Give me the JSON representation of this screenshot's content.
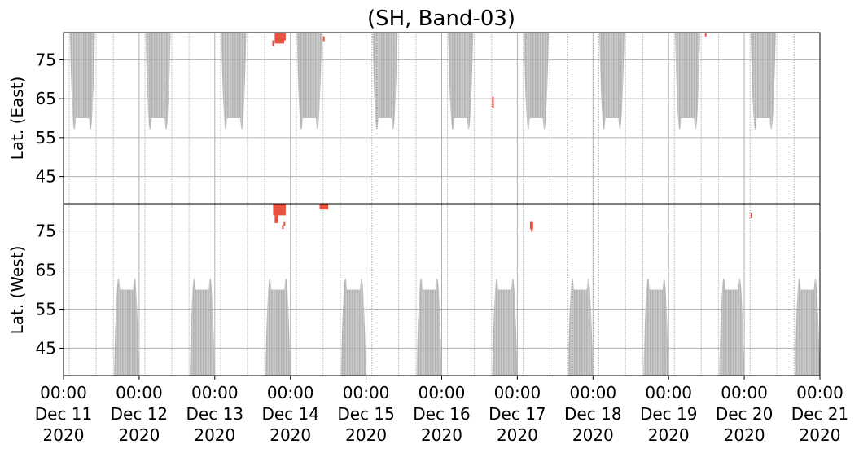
{
  "chart_data": {
    "type": "heatmap",
    "title": "(SH, Band-03)",
    "panels": [
      {
        "name": "east",
        "ylabel": "Lat. (East)",
        "ylim": [
          38,
          82
        ],
        "yticks": [
          45,
          55,
          65,
          75
        ],
        "ytick_labels": [
          "45",
          "55",
          "65",
          "75"
        ],
        "inverted": false
      },
      {
        "name": "west",
        "ylabel": "Lat. (West)",
        "ylim": [
          38,
          82
        ],
        "yticks": [
          75,
          65,
          55,
          45
        ],
        "ytick_labels": [
          "75",
          "65",
          "55",
          "45"
        ],
        "inverted": true
      }
    ],
    "xlim": [
      "2020-12-11 00:00",
      "2020-12-21 00:00"
    ],
    "xticks": [
      {
        "time": "00:00",
        "date": "Dec 11",
        "year": "2020"
      },
      {
        "time": "00:00",
        "date": "Dec 12",
        "year": "2020"
      },
      {
        "time": "00:00",
        "date": "Dec 13",
        "year": "2020"
      },
      {
        "time": "00:00",
        "date": "Dec 14",
        "year": "2020"
      },
      {
        "time": "00:00",
        "date": "Dec 15",
        "year": "2020"
      },
      {
        "time": "00:00",
        "date": "Dec 16",
        "year": "2020"
      },
      {
        "time": "00:00",
        "date": "Dec 17",
        "year": "2020"
      },
      {
        "time": "00:00",
        "date": "Dec 18",
        "year": "2020"
      },
      {
        "time": "00:00",
        "date": "Dec 19",
        "year": "2020"
      },
      {
        "time": "00:00",
        "date": "Dec 20",
        "year": "2020"
      },
      {
        "time": "00:00",
        "date": "Dec 21",
        "year": "2020"
      }
    ],
    "grid": true,
    "coverage_color": "#c4c4c4",
    "detection_color": "#e8503f",
    "coverage_east": [
      {
        "start": "2020-12-11 02:00",
        "end": "2020-12-11 10:00",
        "min_lat": 60
      },
      {
        "start": "2020-12-12 02:00",
        "end": "2020-12-12 10:00",
        "min_lat": 60
      },
      {
        "start": "2020-12-13 02:00",
        "end": "2020-12-13 10:00",
        "min_lat": 60
      },
      {
        "start": "2020-12-14 02:00",
        "end": "2020-12-14 10:00",
        "min_lat": 60
      },
      {
        "start": "2020-12-15 02:00",
        "end": "2020-12-15 10:00",
        "min_lat": 60
      },
      {
        "start": "2020-12-16 02:00",
        "end": "2020-12-16 10:00",
        "min_lat": 60
      },
      {
        "start": "2020-12-17 02:00",
        "end": "2020-12-17 10:00",
        "min_lat": 60
      },
      {
        "start": "2020-12-18 02:00",
        "end": "2020-12-18 10:00",
        "min_lat": 60
      },
      {
        "start": "2020-12-19 02:00",
        "end": "2020-12-19 10:00",
        "min_lat": 60
      },
      {
        "start": "2020-12-20 02:00",
        "end": "2020-12-20 10:00",
        "min_lat": 60
      }
    ],
    "coverage_west": [
      {
        "start": "2020-12-11 16:00",
        "end": "2020-12-12 00:00",
        "min_lat": 60
      },
      {
        "start": "2020-12-12 16:00",
        "end": "2020-12-13 00:00",
        "min_lat": 60
      },
      {
        "start": "2020-12-13 16:00",
        "end": "2020-12-14 00:00",
        "min_lat": 60
      },
      {
        "start": "2020-12-14 16:00",
        "end": "2020-12-15 00:00",
        "min_lat": 60
      },
      {
        "start": "2020-12-15 16:00",
        "end": "2020-12-16 00:00",
        "min_lat": 60
      },
      {
        "start": "2020-12-16 16:00",
        "end": "2020-12-17 00:00",
        "min_lat": 60
      },
      {
        "start": "2020-12-17 16:00",
        "end": "2020-12-18 00:00",
        "min_lat": 60
      },
      {
        "start": "2020-12-18 16:00",
        "end": "2020-12-19 00:00",
        "min_lat": 60
      },
      {
        "start": "2020-12-19 16:00",
        "end": "2020-12-20 00:00",
        "min_lat": 60
      },
      {
        "start": "2020-12-20 16:00",
        "end": "2020-12-21 00:00",
        "min_lat": 60
      }
    ],
    "orbit_lines": [
      "2020-12-11 01:50",
      "2020-12-11 10:20",
      "2020-12-11 15:50",
      "2020-12-12 01:50",
      "2020-12-12 10:20",
      "2020-12-12 15:50",
      "2020-12-13 01:50",
      "2020-12-13 10:20",
      "2020-12-13 15:50",
      "2020-12-14 01:50",
      "2020-12-14 10:20",
      "2020-12-14 15:50",
      "2020-12-15 01:50",
      "2020-12-15 10:20",
      "2020-12-15 15:50",
      "2020-12-16 01:50",
      "2020-12-16 10:20",
      "2020-12-16 15:50",
      "2020-12-17 01:50",
      "2020-12-17 10:20",
      "2020-12-17 15:50",
      "2020-12-18 01:50",
      "2020-12-18 10:20",
      "2020-12-18 15:50",
      "2020-12-19 01:50",
      "2020-12-19 10:20",
      "2020-12-19 15:50",
      "2020-12-20 01:50",
      "2020-12-20 10:20",
      "2020-12-20 15:50"
    ],
    "detections": [
      {
        "panel": "east",
        "start": "2020-12-13 18:15",
        "end": "2020-12-13 18:45",
        "lat_min": 78.5,
        "lat_max": 80
      },
      {
        "panel": "east",
        "start": "2020-12-13 19:00",
        "end": "2020-12-13 22:00",
        "lat_min": 79.2,
        "lat_max": 82
      },
      {
        "panel": "east",
        "start": "2020-12-13 21:00",
        "end": "2020-12-13 22:30",
        "lat_min": 80,
        "lat_max": 82
      },
      {
        "panel": "west",
        "start": "2020-12-13 18:30",
        "end": "2020-12-13 22:30",
        "lat_min": 79,
        "lat_max": 82
      },
      {
        "panel": "west",
        "start": "2020-12-13 19:00",
        "end": "2020-12-13 20:00",
        "lat_min": 77,
        "lat_max": 79
      },
      {
        "panel": "west",
        "start": "2020-12-13 21:20",
        "end": "2020-12-13 21:45",
        "lat_min": 75.5,
        "lat_max": 76.5
      },
      {
        "panel": "west",
        "start": "2020-12-13 21:50",
        "end": "2020-12-13 22:10",
        "lat_min": 76.3,
        "lat_max": 77.5
      },
      {
        "panel": "east",
        "start": "2020-12-14 10:20",
        "end": "2020-12-14 10:50",
        "lat_min": 79.8,
        "lat_max": 81
      },
      {
        "panel": "west",
        "start": "2020-12-14 09:15",
        "end": "2020-12-14 12:00",
        "lat_min": 80.5,
        "lat_max": 82
      },
      {
        "panel": "east",
        "start": "2020-12-16 16:00",
        "end": "2020-12-16 16:30",
        "lat_min": 62.5,
        "lat_max": 65.5
      },
      {
        "panel": "west",
        "start": "2020-12-17 04:00",
        "end": "2020-12-17 05:00",
        "lat_min": 75.5,
        "lat_max": 77.5
      },
      {
        "panel": "west",
        "start": "2020-12-17 04:20",
        "end": "2020-12-17 04:50",
        "lat_min": 74.8,
        "lat_max": 75.8
      },
      {
        "panel": "east",
        "start": "2020-12-19 11:30",
        "end": "2020-12-19 12:00",
        "lat_min": 81,
        "lat_max": 82
      },
      {
        "panel": "west",
        "start": "2020-12-20 02:00",
        "end": "2020-12-20 02:20",
        "lat_min": 78.5,
        "lat_max": 79.5
      }
    ]
  }
}
